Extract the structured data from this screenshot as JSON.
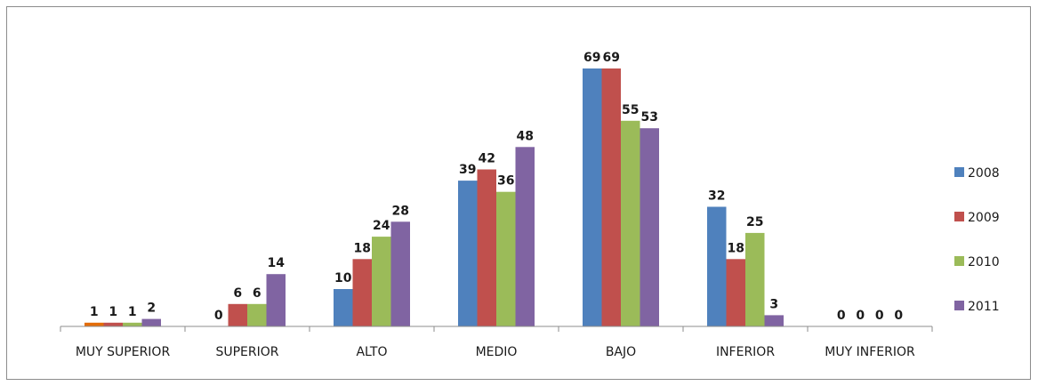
{
  "chart_data": {
    "type": "bar",
    "categories": [
      "MUY SUPERIOR",
      "SUPERIOR",
      "ALTO",
      "MEDIO",
      "BAJO",
      "INFERIOR",
      "MUY INFERIOR"
    ],
    "series": [
      {
        "name": "2008",
        "color": "#4f81bd",
        "values": [
          1,
          0,
          10,
          39,
          69,
          32,
          0
        ]
      },
      {
        "name": "2009",
        "color": "#c0504d",
        "values": [
          1,
          6,
          18,
          42,
          69,
          18,
          0
        ]
      },
      {
        "name": "2010",
        "color": "#9bbb59",
        "values": [
          1,
          6,
          24,
          36,
          55,
          25,
          0
        ]
      },
      {
        "name": "2011",
        "color": "#8064a2",
        "values": [
          2,
          14,
          28,
          48,
          53,
          3,
          0
        ]
      }
    ],
    "first_bar_color": "#e36c09",
    "ylim": [
      0,
      80
    ],
    "grid": false,
    "legend_position": "right"
  }
}
